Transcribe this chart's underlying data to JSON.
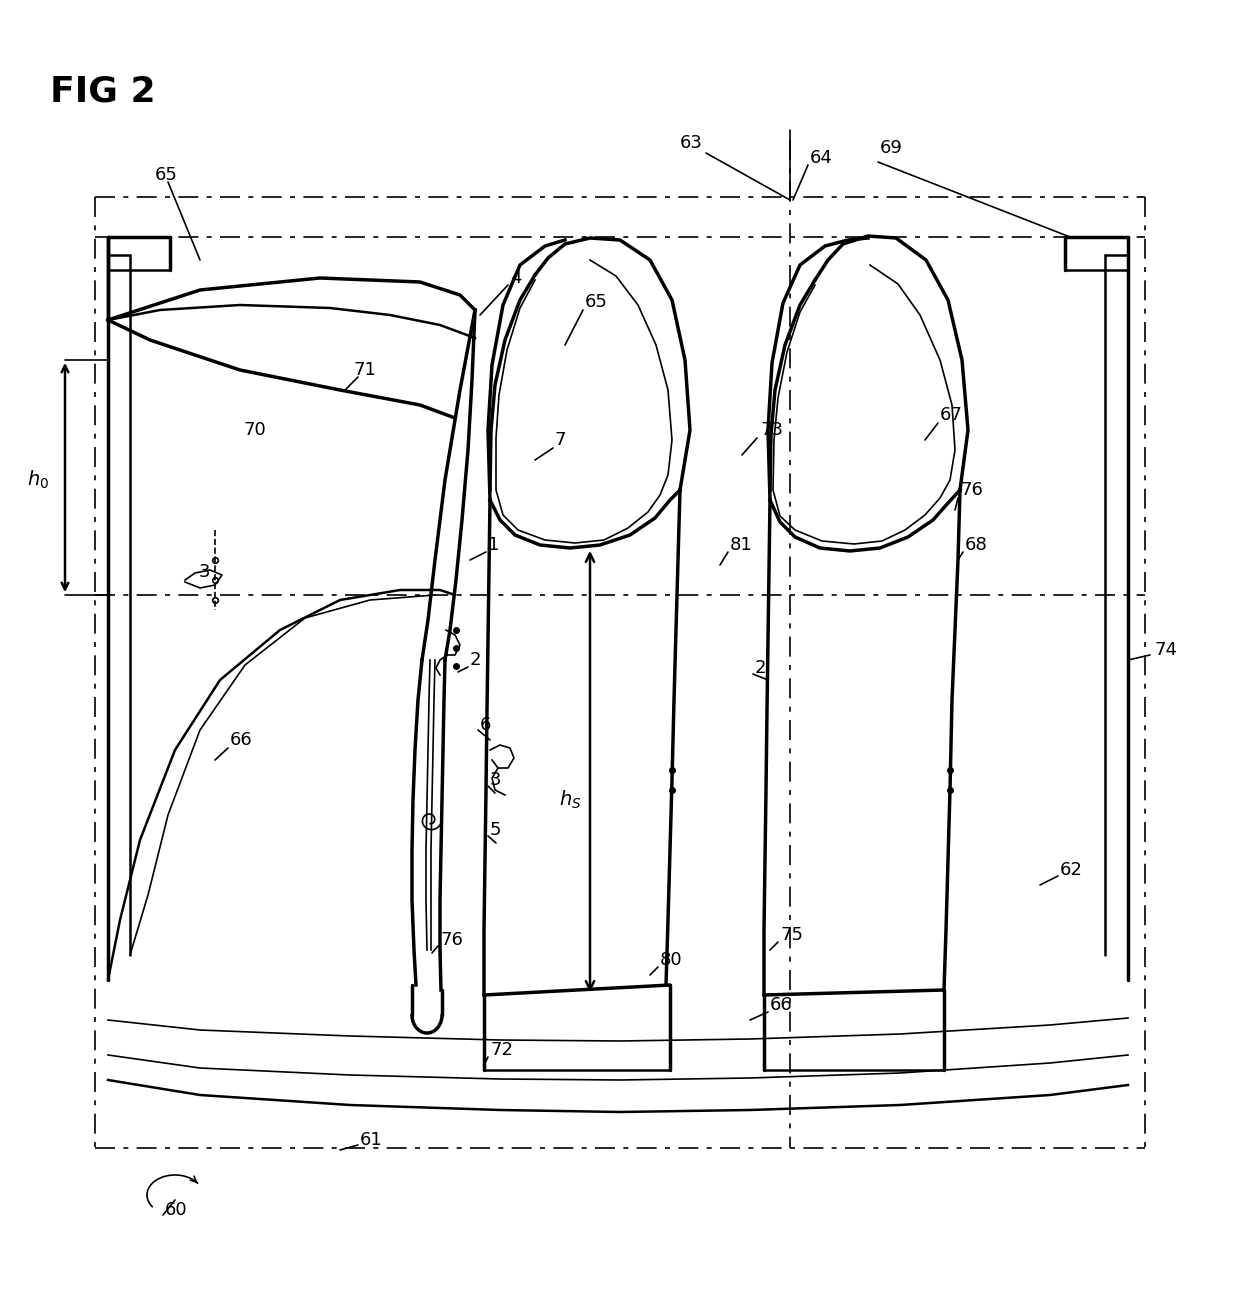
{
  "title": "FIG 2",
  "bg_color": "#ffffff",
  "line_color": "#000000",
  "title_fontsize": 26,
  "label_fontsize": 13,
  "fig_width": 12.4,
  "fig_height": 12.95,
  "dpi": 100
}
